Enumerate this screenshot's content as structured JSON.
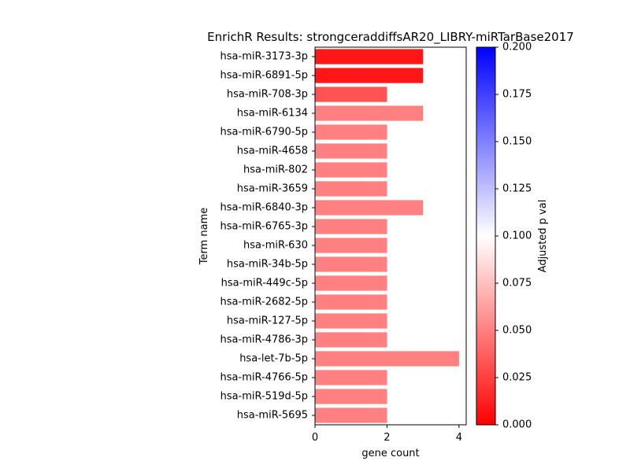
{
  "chart_data": {
    "type": "bar",
    "orientation": "horizontal",
    "title": "EnrichR Results: strongceraddiffsAR20_LIBRY-miRTarBase2017",
    "xlabel": "gene count",
    "ylabel": "Term name",
    "xlim": [
      0,
      4.2
    ],
    "x_ticks": [
      0,
      2,
      4
    ],
    "categories": [
      "hsa-miR-3173-3p",
      "hsa-miR-6891-5p",
      "hsa-miR-708-3p",
      "hsa-miR-6134",
      "hsa-miR-6790-5p",
      "hsa-miR-4658",
      "hsa-miR-802",
      "hsa-miR-3659",
      "hsa-miR-6840-3p",
      "hsa-miR-6765-3p",
      "hsa-miR-630",
      "hsa-miR-34b-5p",
      "hsa-miR-449c-5p",
      "hsa-miR-2682-5p",
      "hsa-miR-127-5p",
      "hsa-miR-4786-3p",
      "hsa-let-7b-5p",
      "hsa-miR-4766-5p",
      "hsa-miR-519d-5p",
      "hsa-miR-5695"
    ],
    "values": [
      3,
      3,
      2,
      3,
      2,
      2,
      2,
      2,
      3,
      2,
      2,
      2,
      2,
      2,
      2,
      2,
      4,
      2,
      2,
      2
    ],
    "adjusted_p_values": [
      0.009,
      0.009,
      0.032,
      0.05,
      0.05,
      0.05,
      0.05,
      0.05,
      0.05,
      0.05,
      0.05,
      0.05,
      0.05,
      0.05,
      0.05,
      0.05,
      0.05,
      0.05,
      0.05,
      0.05
    ],
    "colorbar": {
      "label": "Adjusted p val",
      "range": [
        0,
        0.2
      ],
      "ticks": [
        "0.000",
        "0.025",
        "0.050",
        "0.075",
        "0.100",
        "0.125",
        "0.150",
        "0.175",
        "0.200"
      ],
      "colors": [
        "#ff0000",
        "#ffffff",
        "#0000ff"
      ]
    },
    "grid": false,
    "legend": "none"
  }
}
